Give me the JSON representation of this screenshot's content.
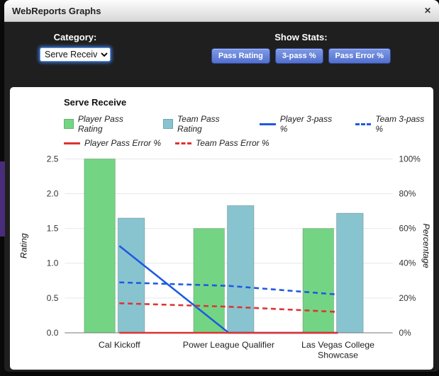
{
  "window": {
    "title": "WebReports Graphs",
    "close_icon": "✕"
  },
  "toolbar": {
    "category_label": "Category:",
    "category_value": "Serve Receive",
    "show_stats_label": "Show Stats:",
    "buttons": [
      {
        "label": "Pass Rating"
      },
      {
        "label": "3-pass %"
      },
      {
        "label": "Pass Error %"
      }
    ]
  },
  "colors": {
    "player_bar": "#73d583",
    "team_bar": "#88c4cf",
    "three_pass_line": "#1e5ae0",
    "error_line": "#dd3333",
    "button_blue": "#5371cd"
  },
  "chart_data": {
    "type": "bar+line",
    "title": "Serve Receive",
    "categories": [
      "Cal Kickoff",
      "Power League Qualifier",
      "Las Vegas College Showcase"
    ],
    "bar_series": [
      {
        "name": "Player Pass Rating",
        "color": "#73d583",
        "axis": "rating",
        "values": [
          2.5,
          1.5,
          1.5
        ]
      },
      {
        "name": "Team Pass Rating",
        "color": "#88c4cf",
        "axis": "rating",
        "values": [
          1.65,
          1.83,
          1.72
        ]
      }
    ],
    "line_series": [
      {
        "name": "Player 3-pass %",
        "color": "#1e5ae0",
        "dash": false,
        "axis": "percentage",
        "values": [
          50,
          0,
          0
        ]
      },
      {
        "name": "Team 3-pass %",
        "color": "#1e5ae0",
        "dash": true,
        "axis": "percentage",
        "values": [
          29,
          27,
          22
        ]
      },
      {
        "name": "Player Pass Error %",
        "color": "#dd3333",
        "dash": false,
        "axis": "percentage",
        "values": [
          0,
          0,
          0
        ]
      },
      {
        "name": "Team Pass Error %",
        "color": "#dd3333",
        "dash": true,
        "axis": "percentage",
        "values": [
          17,
          15,
          12
        ]
      }
    ],
    "left_axis": {
      "label": "Rating",
      "min": 0,
      "max": 2.5,
      "ticks": [
        "0.0",
        "0.5",
        "1.0",
        "1.5",
        "2.0",
        "2.5"
      ]
    },
    "right_axis": {
      "label": "Percentage",
      "min": 0,
      "max": 100,
      "ticks": [
        "0%",
        "20%",
        "40%",
        "60%",
        "80%",
        "100%"
      ]
    },
    "grid": true,
    "legend_position": "top"
  }
}
